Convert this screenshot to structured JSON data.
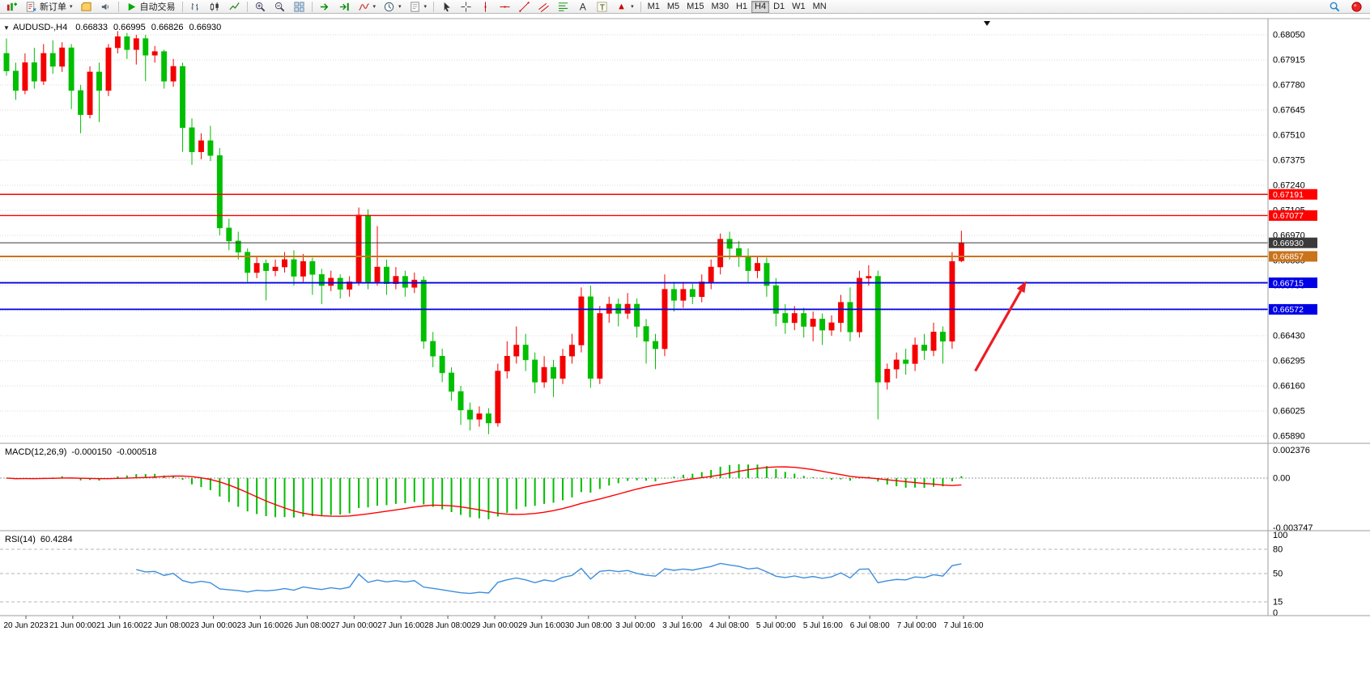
{
  "toolbar": {
    "new_order_label": "新订单",
    "auto_trading_label": "自动交易",
    "timeframes": [
      "M1",
      "M5",
      "M15",
      "M30",
      "H1",
      "H4",
      "D1",
      "W1",
      "MN"
    ],
    "active_timeframe": "H4",
    "groups": [
      {
        "items": [
          {
            "name": "new-chart",
            "icon": "chart-plus"
          },
          {
            "name": "new-order",
            "icon": "order",
            "label": "新订单",
            "caret": true
          },
          {
            "name": "profiles",
            "icon": "profiles"
          },
          {
            "name": "alerts",
            "icon": "sound"
          }
        ]
      },
      {
        "items": [
          {
            "name": "auto-trading",
            "icon": "play",
            "label": "自动交易"
          }
        ]
      },
      {
        "items": [
          {
            "name": "bar-chart",
            "icon": "bars"
          },
          {
            "name": "candlestick-chart",
            "icon": "candles"
          },
          {
            "name": "line-chart",
            "icon": "linechart"
          }
        ]
      },
      {
        "items": [
          {
            "name": "zoom-in",
            "icon": "zoom-in"
          },
          {
            "name": "zoom-out",
            "icon": "zoom-out"
          },
          {
            "name": "tile-windows",
            "icon": "tiles"
          }
        ]
      },
      {
        "items": [
          {
            "name": "auto-scroll",
            "icon": "autoscroll"
          },
          {
            "name": "chart-shift",
            "icon": "shift"
          },
          {
            "name": "indicators-list",
            "icon": "indicator",
            "caret": true
          },
          {
            "name": "periods",
            "icon": "clock",
            "caret": true
          },
          {
            "name": "templates",
            "icon": "template",
            "caret": true
          }
        ]
      },
      {
        "items": [
          {
            "name": "cursor",
            "icon": "cursor"
          },
          {
            "name": "crosshair",
            "icon": "crosshair"
          },
          {
            "name": "vertical-line",
            "icon": "vline"
          },
          {
            "name": "horizontal-line",
            "icon": "hline"
          },
          {
            "name": "trendline",
            "icon": "tline"
          },
          {
            "name": "equidistant-channel",
            "icon": "channel"
          },
          {
            "name": "fibonacci-retracement",
            "icon": "fibo"
          },
          {
            "name": "text",
            "icon": "text-a"
          },
          {
            "name": "text-label",
            "icon": "text-t"
          },
          {
            "name": "arrows",
            "icon": "arrow-drop",
            "caret": true
          }
        ]
      },
      {
        "items": "timeframes"
      }
    ],
    "right": [
      {
        "name": "search",
        "icon": "magnifier"
      },
      {
        "name": "connection-status",
        "icon": "red-ball"
      }
    ]
  },
  "chart": {
    "symbol_period": "AUDUSD-,H4",
    "open": "0.66833",
    "high": "0.66995",
    "low": "0.66826",
    "close": "0.66930"
  },
  "chart_data": {
    "type": "candlestick",
    "symbol": "AUDUSD-",
    "period": "H4",
    "price_step": 0.00135,
    "y_ticks": [
      "0.68050",
      "0.67915",
      "0.67780",
      "0.67645",
      "0.67510",
      "0.67375",
      "0.67240",
      "0.67105",
      "0.66970",
      "0.66835",
      "0.66700",
      "0.66565",
      "0.66430",
      "0.66295",
      "0.66160",
      "0.66025",
      "0.65890"
    ],
    "time_labels": [
      "20 Jun 2023",
      "21 Jun 00:00",
      "21 Jun 16:00",
      "22 Jun 08:00",
      "23 Jun 00:00",
      "23 Jun 16:00",
      "26 Jun 08:00",
      "27 Jun 00:00",
      "27 Jun 16:00",
      "28 Jun 08:00",
      "29 Jun 00:00",
      "29 Jun 16:00",
      "30 Jun 08:00",
      "3 Jul 00:00",
      "3 Jul 16:00",
      "4 Jul 08:00",
      "5 Jul 00:00",
      "5 Jul 16:00",
      "6 Jul 08:00",
      "7 Jul 00:00",
      "7 Jul 16:00"
    ],
    "candles": [
      [
        0.6795,
        0.6803,
        0.6783,
        0.67855
      ],
      [
        0.67855,
        0.679,
        0.677,
        0.6775
      ],
      [
        0.6775,
        0.6795,
        0.6773,
        0.679
      ],
      [
        0.679,
        0.6798,
        0.6776,
        0.678
      ],
      [
        0.678,
        0.68,
        0.6778,
        0.6795
      ],
      [
        0.6795,
        0.6802,
        0.6784,
        0.6788
      ],
      [
        0.6788,
        0.6801,
        0.6785,
        0.6798
      ],
      [
        0.6798,
        0.68,
        0.6765,
        0.6775
      ],
      [
        0.6775,
        0.6778,
        0.6752,
        0.6762
      ],
      [
        0.6762,
        0.6788,
        0.676,
        0.6785
      ],
      [
        0.6785,
        0.679,
        0.6758,
        0.6775
      ],
      [
        0.6775,
        0.68,
        0.6772,
        0.6798
      ],
      [
        0.6798,
        0.6807,
        0.6795,
        0.6804
      ],
      [
        0.6804,
        0.6806,
        0.6792,
        0.6797
      ],
      [
        0.6797,
        0.6805,
        0.6789,
        0.6803
      ],
      [
        0.6803,
        0.6805,
        0.678,
        0.6794
      ],
      [
        0.6794,
        0.6799,
        0.679,
        0.6796
      ],
      [
        0.6796,
        0.6797,
        0.6776,
        0.678
      ],
      [
        0.678,
        0.6792,
        0.6777,
        0.6788
      ],
      [
        0.6788,
        0.679,
        0.6742,
        0.6755
      ],
      [
        0.6755,
        0.676,
        0.6735,
        0.6742
      ],
      [
        0.6742,
        0.6752,
        0.6738,
        0.6748
      ],
      [
        0.6748,
        0.6756,
        0.6737,
        0.674
      ],
      [
        0.674,
        0.6744,
        0.6697,
        0.6701
      ],
      [
        0.6701,
        0.6706,
        0.6689,
        0.6694
      ],
      [
        0.6694,
        0.6699,
        0.6684,
        0.6688
      ],
      [
        0.6688,
        0.669,
        0.6672,
        0.6677
      ],
      [
        0.6677,
        0.6686,
        0.6674,
        0.6682
      ],
      [
        0.6682,
        0.6684,
        0.6662,
        0.6678
      ],
      [
        0.6678,
        0.6684,
        0.6675,
        0.668
      ],
      [
        0.668,
        0.6688,
        0.6677,
        0.6684
      ],
      [
        0.6684,
        0.6689,
        0.667,
        0.6675
      ],
      [
        0.6675,
        0.6687,
        0.6672,
        0.6683
      ],
      [
        0.6683,
        0.6685,
        0.6665,
        0.6676
      ],
      [
        0.6676,
        0.6679,
        0.666,
        0.667
      ],
      [
        0.667,
        0.6678,
        0.6667,
        0.6674
      ],
      [
        0.6674,
        0.6676,
        0.6663,
        0.6668
      ],
      [
        0.6668,
        0.6675,
        0.6664,
        0.6672
      ],
      [
        0.6672,
        0.6712,
        0.667,
        0.6708
      ],
      [
        0.6708,
        0.6711,
        0.6668,
        0.6672
      ],
      [
        0.6672,
        0.6702,
        0.667,
        0.668
      ],
      [
        0.668,
        0.6684,
        0.6665,
        0.6671
      ],
      [
        0.6671,
        0.668,
        0.6668,
        0.6675
      ],
      [
        0.6675,
        0.6678,
        0.6664,
        0.6669
      ],
      [
        0.6669,
        0.6677,
        0.6666,
        0.6673
      ],
      [
        0.6673,
        0.6675,
        0.6636,
        0.664
      ],
      [
        0.664,
        0.6645,
        0.6626,
        0.6632
      ],
      [
        0.6632,
        0.6636,
        0.6618,
        0.6623
      ],
      [
        0.6623,
        0.6626,
        0.6608,
        0.6613
      ],
      [
        0.6613,
        0.6616,
        0.6595,
        0.6603
      ],
      [
        0.6603,
        0.6607,
        0.6592,
        0.6598
      ],
      [
        0.6598,
        0.6605,
        0.6594,
        0.6601
      ],
      [
        0.6601,
        0.6604,
        0.659,
        0.6596
      ],
      [
        0.6596,
        0.6628,
        0.6594,
        0.6624
      ],
      [
        0.6624,
        0.664,
        0.662,
        0.6632
      ],
      [
        0.6632,
        0.6648,
        0.6628,
        0.6638
      ],
      [
        0.6638,
        0.6644,
        0.6624,
        0.663
      ],
      [
        0.663,
        0.6634,
        0.6612,
        0.6618
      ],
      [
        0.6618,
        0.6632,
        0.6615,
        0.6626
      ],
      [
        0.6626,
        0.663,
        0.661,
        0.662
      ],
      [
        0.662,
        0.6636,
        0.6617,
        0.6632
      ],
      [
        0.6632,
        0.6644,
        0.6628,
        0.6638
      ],
      [
        0.6638,
        0.6669,
        0.6634,
        0.6664
      ],
      [
        0.6664,
        0.667,
        0.6615,
        0.662
      ],
      [
        0.662,
        0.6659,
        0.6617,
        0.6655
      ],
      [
        0.6655,
        0.6664,
        0.665,
        0.666
      ],
      [
        0.666,
        0.6663,
        0.6648,
        0.6655
      ],
      [
        0.6655,
        0.6666,
        0.6652,
        0.666
      ],
      [
        0.666,
        0.6663,
        0.6642,
        0.6648
      ],
      [
        0.6648,
        0.6652,
        0.6628,
        0.664
      ],
      [
        0.664,
        0.6644,
        0.6625,
        0.6636
      ],
      [
        0.6636,
        0.6676,
        0.6632,
        0.6668
      ],
      [
        0.6668,
        0.6672,
        0.6656,
        0.6662
      ],
      [
        0.6662,
        0.6672,
        0.6658,
        0.6668
      ],
      [
        0.6668,
        0.6671,
        0.666,
        0.6664
      ],
      [
        0.6664,
        0.6676,
        0.6661,
        0.6672
      ],
      [
        0.6672,
        0.6684,
        0.6668,
        0.668
      ],
      [
        0.668,
        0.6698,
        0.6676,
        0.6695
      ],
      [
        0.6695,
        0.6699,
        0.6684,
        0.669
      ],
      [
        0.669,
        0.6694,
        0.668,
        0.6686
      ],
      [
        0.6686,
        0.669,
        0.6672,
        0.6678
      ],
      [
        0.6678,
        0.6686,
        0.6674,
        0.6682
      ],
      [
        0.6682,
        0.6685,
        0.6664,
        0.667
      ],
      [
        0.667,
        0.6674,
        0.6648,
        0.6655
      ],
      [
        0.6655,
        0.666,
        0.6644,
        0.665
      ],
      [
        0.665,
        0.6659,
        0.6646,
        0.6655
      ],
      [
        0.6655,
        0.6658,
        0.6642,
        0.6648
      ],
      [
        0.6648,
        0.6656,
        0.664,
        0.6652
      ],
      [
        0.6652,
        0.6655,
        0.6638,
        0.6646
      ],
      [
        0.6646,
        0.6654,
        0.6643,
        0.665
      ],
      [
        0.665,
        0.6665,
        0.6645,
        0.6661
      ],
      [
        0.6661,
        0.6669,
        0.664,
        0.6645
      ],
      [
        0.6645,
        0.6678,
        0.6642,
        0.6674
      ],
      [
        0.6674,
        0.6681,
        0.667,
        0.6675
      ],
      [
        0.6675,
        0.6678,
        0.6598,
        0.6618
      ],
      [
        0.6618,
        0.6628,
        0.6614,
        0.6625
      ],
      [
        0.6625,
        0.6634,
        0.662,
        0.663
      ],
      [
        0.663,
        0.6636,
        0.6622,
        0.6628
      ],
      [
        0.6628,
        0.6642,
        0.6624,
        0.6638
      ],
      [
        0.6638,
        0.6644,
        0.663,
        0.6635
      ],
      [
        0.6635,
        0.665,
        0.6632,
        0.6645
      ],
      [
        0.6645,
        0.6648,
        0.6628,
        0.664
      ],
      [
        0.664,
        0.6688,
        0.6636,
        0.6683
      ],
      [
        0.66833,
        0.66995,
        0.66826,
        0.6693
      ]
    ],
    "hlines": [
      {
        "name": "resistance-1",
        "price": 0.67191,
        "label": "0.67191",
        "color": "#FF0000",
        "width": 1.4
      },
      {
        "name": "resistance-2",
        "price": 0.67077,
        "label": "0.67077",
        "color": "#FF0000",
        "width": 1.4
      },
      {
        "name": "current-price",
        "price": 0.6693,
        "label": "0.66930",
        "color": "#3a3a3a",
        "width": 1
      },
      {
        "name": "pivot-line",
        "price": 0.66857,
        "label": "0.66857",
        "color": "#C9731B",
        "width": 2
      },
      {
        "name": "support-1",
        "price": 0.66715,
        "label": "0.66715",
        "color": "#0000E6",
        "width": 1.8
      },
      {
        "name": "support-2",
        "price": 0.66572,
        "label": "0.66572",
        "color": "#0000E6",
        "width": 1.8
      }
    ],
    "arrow": {
      "from": {
        "index": 104.5,
        "price": 0.6624
      },
      "to": {
        "index": 110,
        "price": 0.66725
      },
      "color": "#ED1C24"
    },
    "colors": {
      "up": "#F40000",
      "down": "#00BE00",
      "grid": "#D9D9D9",
      "axis_text": "#000000"
    }
  },
  "indicators": {
    "macd": {
      "name": "MACD(12,26,9)",
      "value_main": "-0.000150",
      "value_signal": "-0.000518",
      "axis_max": "0.002376",
      "axis_zero": "0.00",
      "axis_min": "-0.003747",
      "params": [
        12,
        26,
        9
      ],
      "hist_color": "#00BE00",
      "signal_color": "#FF0000"
    },
    "rsi": {
      "name": "RSI(14)",
      "value": "60.4284",
      "period": 14,
      "axis": [
        "100",
        "80",
        "50",
        "15",
        "0"
      ],
      "levels": [
        80,
        50,
        15
      ],
      "line_color": "#3E8EDE"
    }
  }
}
